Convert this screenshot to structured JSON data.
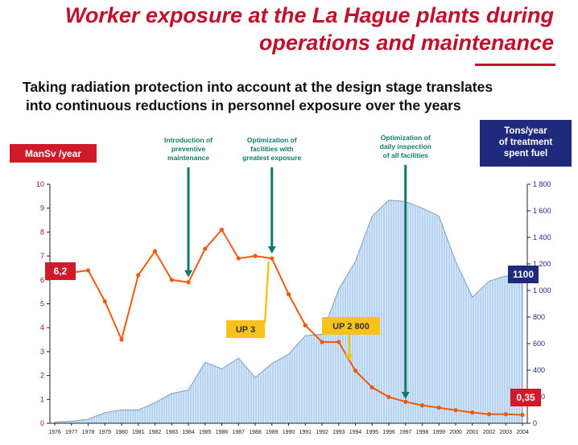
{
  "title_lines": [
    "Worker exposure at the La Hague plants during",
    "operations and maintenance"
  ],
  "subtitle_lines": [
    "Taking radiation protection into account at the design stage translates",
    "into continuous reductions in personnel exposure over the years"
  ],
  "colors": {
    "title": "#c0102a",
    "exposure_line": "#ee5a10",
    "tonnage_area_fill": "#b8d4f0",
    "tonnage_area_stroke": "#7a9ec8",
    "left_axis": "#d01a2a",
    "right_axis": "#1f2a7c",
    "annotation": "#0f7a6c",
    "callout_yellow": "#f7c21a"
  },
  "chart_data": {
    "type": "line+area",
    "left_axis": {
      "label": "ManSv /year",
      "range": [
        0,
        10
      ],
      "ticks": [
        "0",
        "1",
        "2",
        "3",
        "4",
        "5",
        "6",
        "7",
        "8",
        "9",
        "10"
      ]
    },
    "right_axis": {
      "label": [
        "Tons/year",
        "of treatment",
        "spent fuel"
      ],
      "range": [
        0,
        1800
      ],
      "ticks": [
        "0",
        "200",
        "400",
        "600",
        "800",
        "1 000",
        "1 200",
        "1 400",
        "1 600",
        "1 800"
      ]
    },
    "x": [
      "1976",
      "1977",
      "1978",
      "1979",
      "1980",
      "1981",
      "1982",
      "1983",
      "1984",
      "1985",
      "1986",
      "1987",
      "1988",
      "1989",
      "1990",
      "1991",
      "1992",
      "1993",
      "1994",
      "1995",
      "1996",
      "1997",
      "1998",
      "1999",
      "2000",
      "2001",
      "2002",
      "2003",
      "2004"
    ],
    "series": [
      {
        "name": "ManSv /year",
        "type": "line",
        "axis": "left",
        "values": [
          6.2,
          6.3,
          6.4,
          5.1,
          3.5,
          6.2,
          7.2,
          6.0,
          5.9,
          7.3,
          8.1,
          6.9,
          7.0,
          6.9,
          5.4,
          4.1,
          3.4,
          3.4,
          2.2,
          1.5,
          1.1,
          0.9,
          0.75,
          0.65,
          0.55,
          0.45,
          0.38,
          0.38,
          0.35
        ]
      },
      {
        "name": "Tons/year of treatment spent fuel",
        "type": "area",
        "axis": "right",
        "values": [
          10,
          15,
          30,
          80,
          100,
          100,
          155,
          225,
          250,
          460,
          410,
          490,
          345,
          450,
          520,
          660,
          670,
          1010,
          1220,
          1560,
          1680,
          1670,
          1620,
          1560,
          1220,
          950,
          1070,
          1110,
          1110
        ]
      }
    ],
    "annotations": [
      {
        "text": [
          "Introduction of",
          "preventive",
          "maintenance"
        ],
        "x": "1984"
      },
      {
        "text": [
          "Optimization of",
          "facilities with",
          "greatest exposure"
        ],
        "x": "1989"
      },
      {
        "text": [
          "Optimization of",
          "daily inspection",
          "of all facilities"
        ],
        "x": "1997"
      }
    ],
    "callouts": [
      {
        "text": "UP 3",
        "x": "1989"
      },
      {
        "text": "UP 2  800",
        "x": "1994"
      }
    ],
    "value_labels": [
      {
        "text": "6,2",
        "axis": "left"
      },
      {
        "text": "1100",
        "axis": "right"
      },
      {
        "text": "0,35",
        "axis": "left"
      }
    ]
  }
}
